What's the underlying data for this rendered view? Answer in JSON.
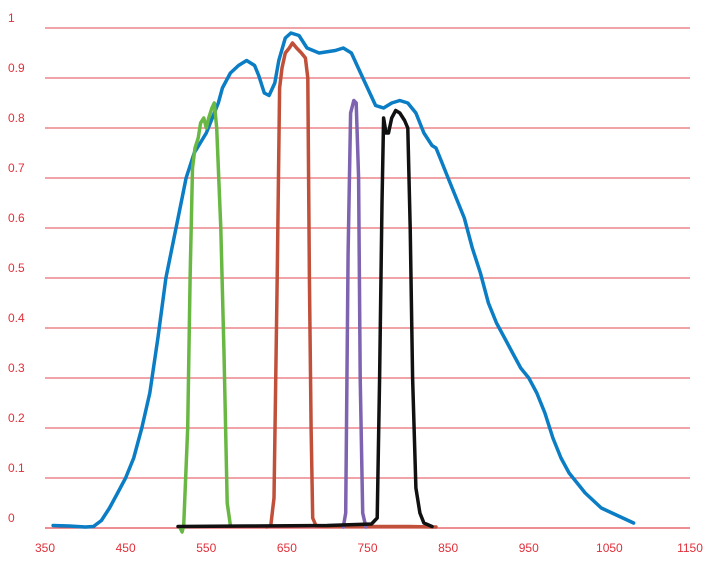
{
  "chart_data": {
    "type": "line",
    "title": "",
    "xlabel": "",
    "ylabel": "",
    "xlim": [
      350,
      1150
    ],
    "ylim": [
      0,
      1
    ],
    "grid": true,
    "x_ticks": [
      350,
      450,
      550,
      650,
      750,
      850,
      950,
      1050,
      1150
    ],
    "x_tick_labels": [
      "350",
      "450",
      "550",
      "650",
      "750",
      "850",
      "950",
      "1050",
      "1150"
    ],
    "y_ticks": [
      0,
      0.1,
      0.2,
      0.3,
      0.4,
      0.5,
      0.6,
      0.7,
      0.8,
      0.9,
      1
    ],
    "y_tick_labels": [
      "0",
      "0.1",
      "0.2",
      "0.3",
      "0.4",
      "0.5",
      "0.6",
      "0.7",
      "0.8",
      "0.9",
      "1"
    ],
    "colors": {
      "grid": "#e04a52",
      "tick_text": "#e0303a"
    },
    "series": [
      {
        "color": "#0a7dc4",
        "points": [
          [
            360,
            0.005
          ],
          [
            380,
            0.004
          ],
          [
            400,
            0.002
          ],
          [
            410,
            0.003
          ],
          [
            420,
            0.015
          ],
          [
            430,
            0.04
          ],
          [
            440,
            0.07
          ],
          [
            450,
            0.1
          ],
          [
            460,
            0.14
          ],
          [
            470,
            0.2
          ],
          [
            480,
            0.27
          ],
          [
            490,
            0.38
          ],
          [
            500,
            0.5
          ],
          [
            510,
            0.58
          ],
          [
            520,
            0.66
          ],
          [
            525,
            0.7
          ],
          [
            535,
            0.75
          ],
          [
            550,
            0.79
          ],
          [
            565,
            0.85
          ],
          [
            570,
            0.88
          ],
          [
            580,
            0.91
          ],
          [
            590,
            0.925
          ],
          [
            600,
            0.935
          ],
          [
            610,
            0.925
          ],
          [
            615,
            0.905
          ],
          [
            622,
            0.87
          ],
          [
            628,
            0.865
          ],
          [
            635,
            0.89
          ],
          [
            640,
            0.935
          ],
          [
            648,
            0.98
          ],
          [
            655,
            0.99
          ],
          [
            665,
            0.985
          ],
          [
            675,
            0.96
          ],
          [
            690,
            0.95
          ],
          [
            710,
            0.955
          ],
          [
            720,
            0.96
          ],
          [
            730,
            0.95
          ],
          [
            740,
            0.915
          ],
          [
            750,
            0.88
          ],
          [
            760,
            0.845
          ],
          [
            770,
            0.84
          ],
          [
            780,
            0.85
          ],
          [
            790,
            0.855
          ],
          [
            800,
            0.85
          ],
          [
            810,
            0.83
          ],
          [
            815,
            0.81
          ],
          [
            820,
            0.79
          ],
          [
            830,
            0.765
          ],
          [
            835,
            0.76
          ],
          [
            840,
            0.74
          ],
          [
            850,
            0.7
          ],
          [
            860,
            0.66
          ],
          [
            870,
            0.62
          ],
          [
            880,
            0.56
          ],
          [
            890,
            0.51
          ],
          [
            900,
            0.45
          ],
          [
            910,
            0.41
          ],
          [
            920,
            0.38
          ],
          [
            930,
            0.35
          ],
          [
            940,
            0.32
          ],
          [
            950,
            0.3
          ],
          [
            960,
            0.27
          ],
          [
            970,
            0.23
          ],
          [
            980,
            0.18
          ],
          [
            990,
            0.14
          ],
          [
            1000,
            0.11
          ],
          [
            1020,
            0.07
          ],
          [
            1040,
            0.04
          ],
          [
            1060,
            0.025
          ],
          [
            1080,
            0.01
          ]
        ]
      },
      {
        "color": "#6ab844",
        "points": [
          [
            517,
            0.002
          ],
          [
            520,
            -0.008
          ],
          [
            522,
            0.005
          ],
          [
            527,
            0.2
          ],
          [
            530,
            0.5
          ],
          [
            533,
            0.72
          ],
          [
            536,
            0.76
          ],
          [
            540,
            0.78
          ],
          [
            543,
            0.81
          ],
          [
            547,
            0.82
          ],
          [
            550,
            0.8
          ],
          [
            553,
            0.82
          ],
          [
            557,
            0.84
          ],
          [
            560,
            0.85
          ],
          [
            563,
            0.8
          ],
          [
            568,
            0.6
          ],
          [
            572,
            0.35
          ],
          [
            576,
            0.05
          ],
          [
            580,
            0.005
          ]
        ]
      },
      {
        "color": "#c0503a",
        "points": [
          [
            625,
            0.002
          ],
          [
            630,
            0.005
          ],
          [
            634,
            0.06
          ],
          [
            638,
            0.5
          ],
          [
            641,
            0.88
          ],
          [
            644,
            0.92
          ],
          [
            648,
            0.95
          ],
          [
            653,
            0.96
          ],
          [
            657,
            0.97
          ],
          [
            662,
            0.96
          ],
          [
            668,
            0.95
          ],
          [
            673,
            0.94
          ],
          [
            676,
            0.9
          ],
          [
            678,
            0.5
          ],
          [
            680,
            0.2
          ],
          [
            682,
            0.02
          ],
          [
            686,
            0.005
          ],
          [
            700,
            0.003
          ],
          [
            800,
            0.003
          ],
          [
            835,
            0.002
          ]
        ]
      },
      {
        "color": "#7d63b0",
        "points": [
          [
            720,
            0.002
          ],
          [
            723,
            0.03
          ],
          [
            726,
            0.55
          ],
          [
            729,
            0.83
          ],
          [
            733,
            0.855
          ],
          [
            736,
            0.85
          ],
          [
            739,
            0.7
          ],
          [
            741,
            0.3
          ],
          [
            744,
            0.03
          ],
          [
            748,
            0.002
          ]
        ]
      },
      {
        "color": "#111111",
        "points": [
          [
            515,
            0.003
          ],
          [
            600,
            0.004
          ],
          [
            700,
            0.005
          ],
          [
            755,
            0.008
          ],
          [
            762,
            0.02
          ],
          [
            765,
            0.3
          ],
          [
            768,
            0.65
          ],
          [
            770,
            0.82
          ],
          [
            773,
            0.79
          ],
          [
            776,
            0.79
          ],
          [
            780,
            0.82
          ],
          [
            785,
            0.835
          ],
          [
            790,
            0.83
          ],
          [
            796,
            0.815
          ],
          [
            800,
            0.8
          ],
          [
            803,
            0.6
          ],
          [
            806,
            0.3
          ],
          [
            810,
            0.08
          ],
          [
            815,
            0.03
          ],
          [
            820,
            0.01
          ],
          [
            830,
            0.003
          ]
        ]
      }
    ]
  }
}
